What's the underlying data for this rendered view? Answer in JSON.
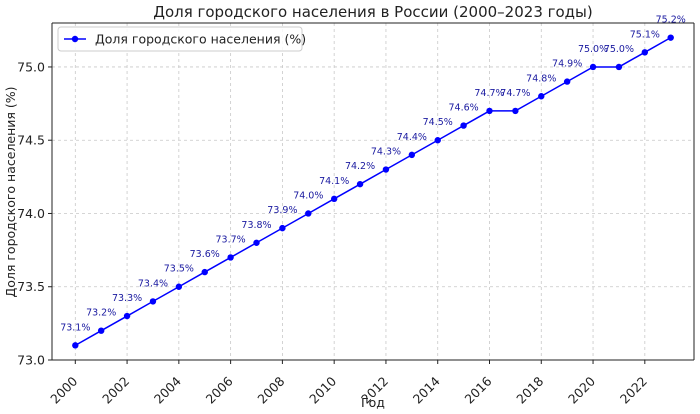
{
  "chart_data": {
    "type": "line",
    "title": "Доля городского населения в России (2000–2023 годы)",
    "xlabel": "Год",
    "ylabel": "Доля городского населения (%)",
    "x": [
      2000,
      2001,
      2002,
      2003,
      2004,
      2005,
      2006,
      2007,
      2008,
      2009,
      2010,
      2011,
      2012,
      2013,
      2014,
      2015,
      2016,
      2017,
      2018,
      2019,
      2020,
      2021,
      2022,
      2023
    ],
    "series": [
      {
        "name": "Доля городского населения (%)",
        "color": "#0000ff",
        "values": [
          73.1,
          73.2,
          73.3,
          73.4,
          73.5,
          73.6,
          73.7,
          73.8,
          73.9,
          74.0,
          74.1,
          74.2,
          74.3,
          74.4,
          74.5,
          74.6,
          74.7,
          74.7,
          74.8,
          74.9,
          75.0,
          75.0,
          75.1,
          75.2
        ],
        "labels": [
          "73.1%",
          "73.2%",
          "73.3%",
          "73.4%",
          "73.5%",
          "73.6%",
          "73.7%",
          "73.8%",
          "73.9%",
          "74.0%",
          "74.1%",
          "74.2%",
          "74.3%",
          "74.4%",
          "74.5%",
          "74.6%",
          "74.7%",
          "74.7%",
          "74.8%",
          "74.9%",
          "75.0%",
          "75.0%",
          "75.1%",
          "75.2%"
        ]
      }
    ],
    "xlim": [
      1999.1,
      2023.9
    ],
    "ylim": [
      73.0,
      75.3
    ],
    "xticks": [
      2000,
      2002,
      2004,
      2006,
      2008,
      2010,
      2012,
      2014,
      2016,
      2018,
      2020,
      2022
    ],
    "yticks": [
      "73.0",
      "73.5",
      "74.0",
      "74.5",
      "75.0"
    ],
    "grid": true,
    "legend_position": "top-left"
  }
}
